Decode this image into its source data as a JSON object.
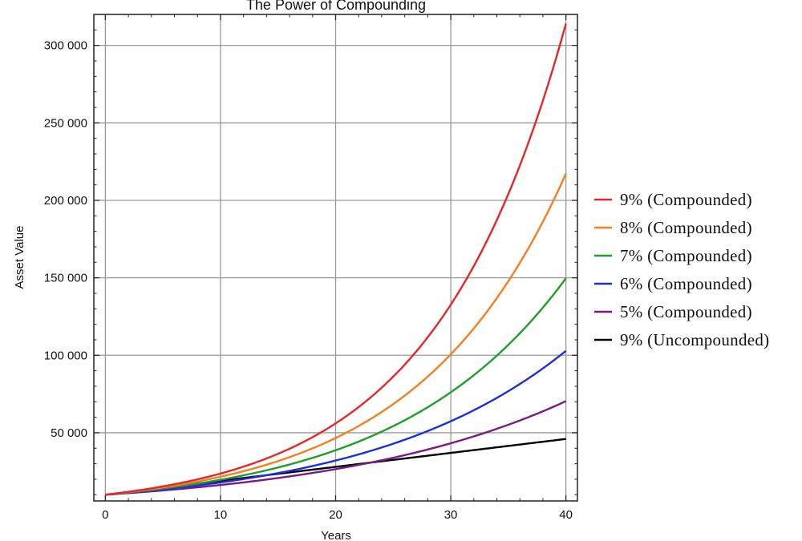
{
  "chart_data": {
    "type": "line",
    "title": "The Power of Compounding",
    "xlabel": "Years",
    "ylabel": "Asset Value",
    "xlim": [
      -1,
      41
    ],
    "ylim": [
      6000,
      320000
    ],
    "x_ticks": [
      0,
      10,
      20,
      30,
      40
    ],
    "y_ticks": [
      50000,
      100000,
      150000,
      200000,
      250000,
      300000
    ],
    "y_tick_labels": [
      "50 000",
      "100 000",
      "150 000",
      "200 000",
      "250 000",
      "300 000"
    ],
    "grid": true,
    "legend_position": "right",
    "principal": 10000,
    "series": [
      {
        "name": "9% (Compounded)",
        "color": "#e8262a",
        "rate": 0.09,
        "compounded": true,
        "x": [
          0,
          10,
          20,
          30,
          40
        ],
        "values": [
          10000,
          23674,
          56044,
          132677,
          314094
        ]
      },
      {
        "name": "8% (Compounded)",
        "color": "#f47f20",
        "rate": 0.08,
        "compounded": true,
        "x": [
          0,
          10,
          20,
          30,
          40
        ],
        "values": [
          10000,
          21589,
          46610,
          100627,
          217245
        ]
      },
      {
        "name": "7% (Compounded)",
        "color": "#1f9e2a",
        "rate": 0.07,
        "compounded": true,
        "x": [
          0,
          10,
          20,
          30,
          40
        ],
        "values": [
          10000,
          19672,
          38697,
          76123,
          149745
        ]
      },
      {
        "name": "6% (Compounded)",
        "color": "#1c2fe0",
        "rate": 0.06,
        "compounded": true,
        "x": [
          0,
          10,
          20,
          30,
          40
        ],
        "values": [
          10000,
          17908,
          32071,
          57435,
          102857
        ]
      },
      {
        "name": "5% (Compounded)",
        "color": "#7b1a82",
        "rate": 0.05,
        "compounded": true,
        "x": [
          0,
          10,
          20,
          30,
          40
        ],
        "values": [
          10000,
          16289,
          26533,
          43219,
          70400
        ]
      },
      {
        "name": "9% (Uncompounded)",
        "color": "#000000",
        "rate": 0.09,
        "compounded": false,
        "x": [
          0,
          10,
          20,
          30,
          40
        ],
        "values": [
          10000,
          19000,
          28000,
          37000,
          46000
        ]
      }
    ]
  }
}
